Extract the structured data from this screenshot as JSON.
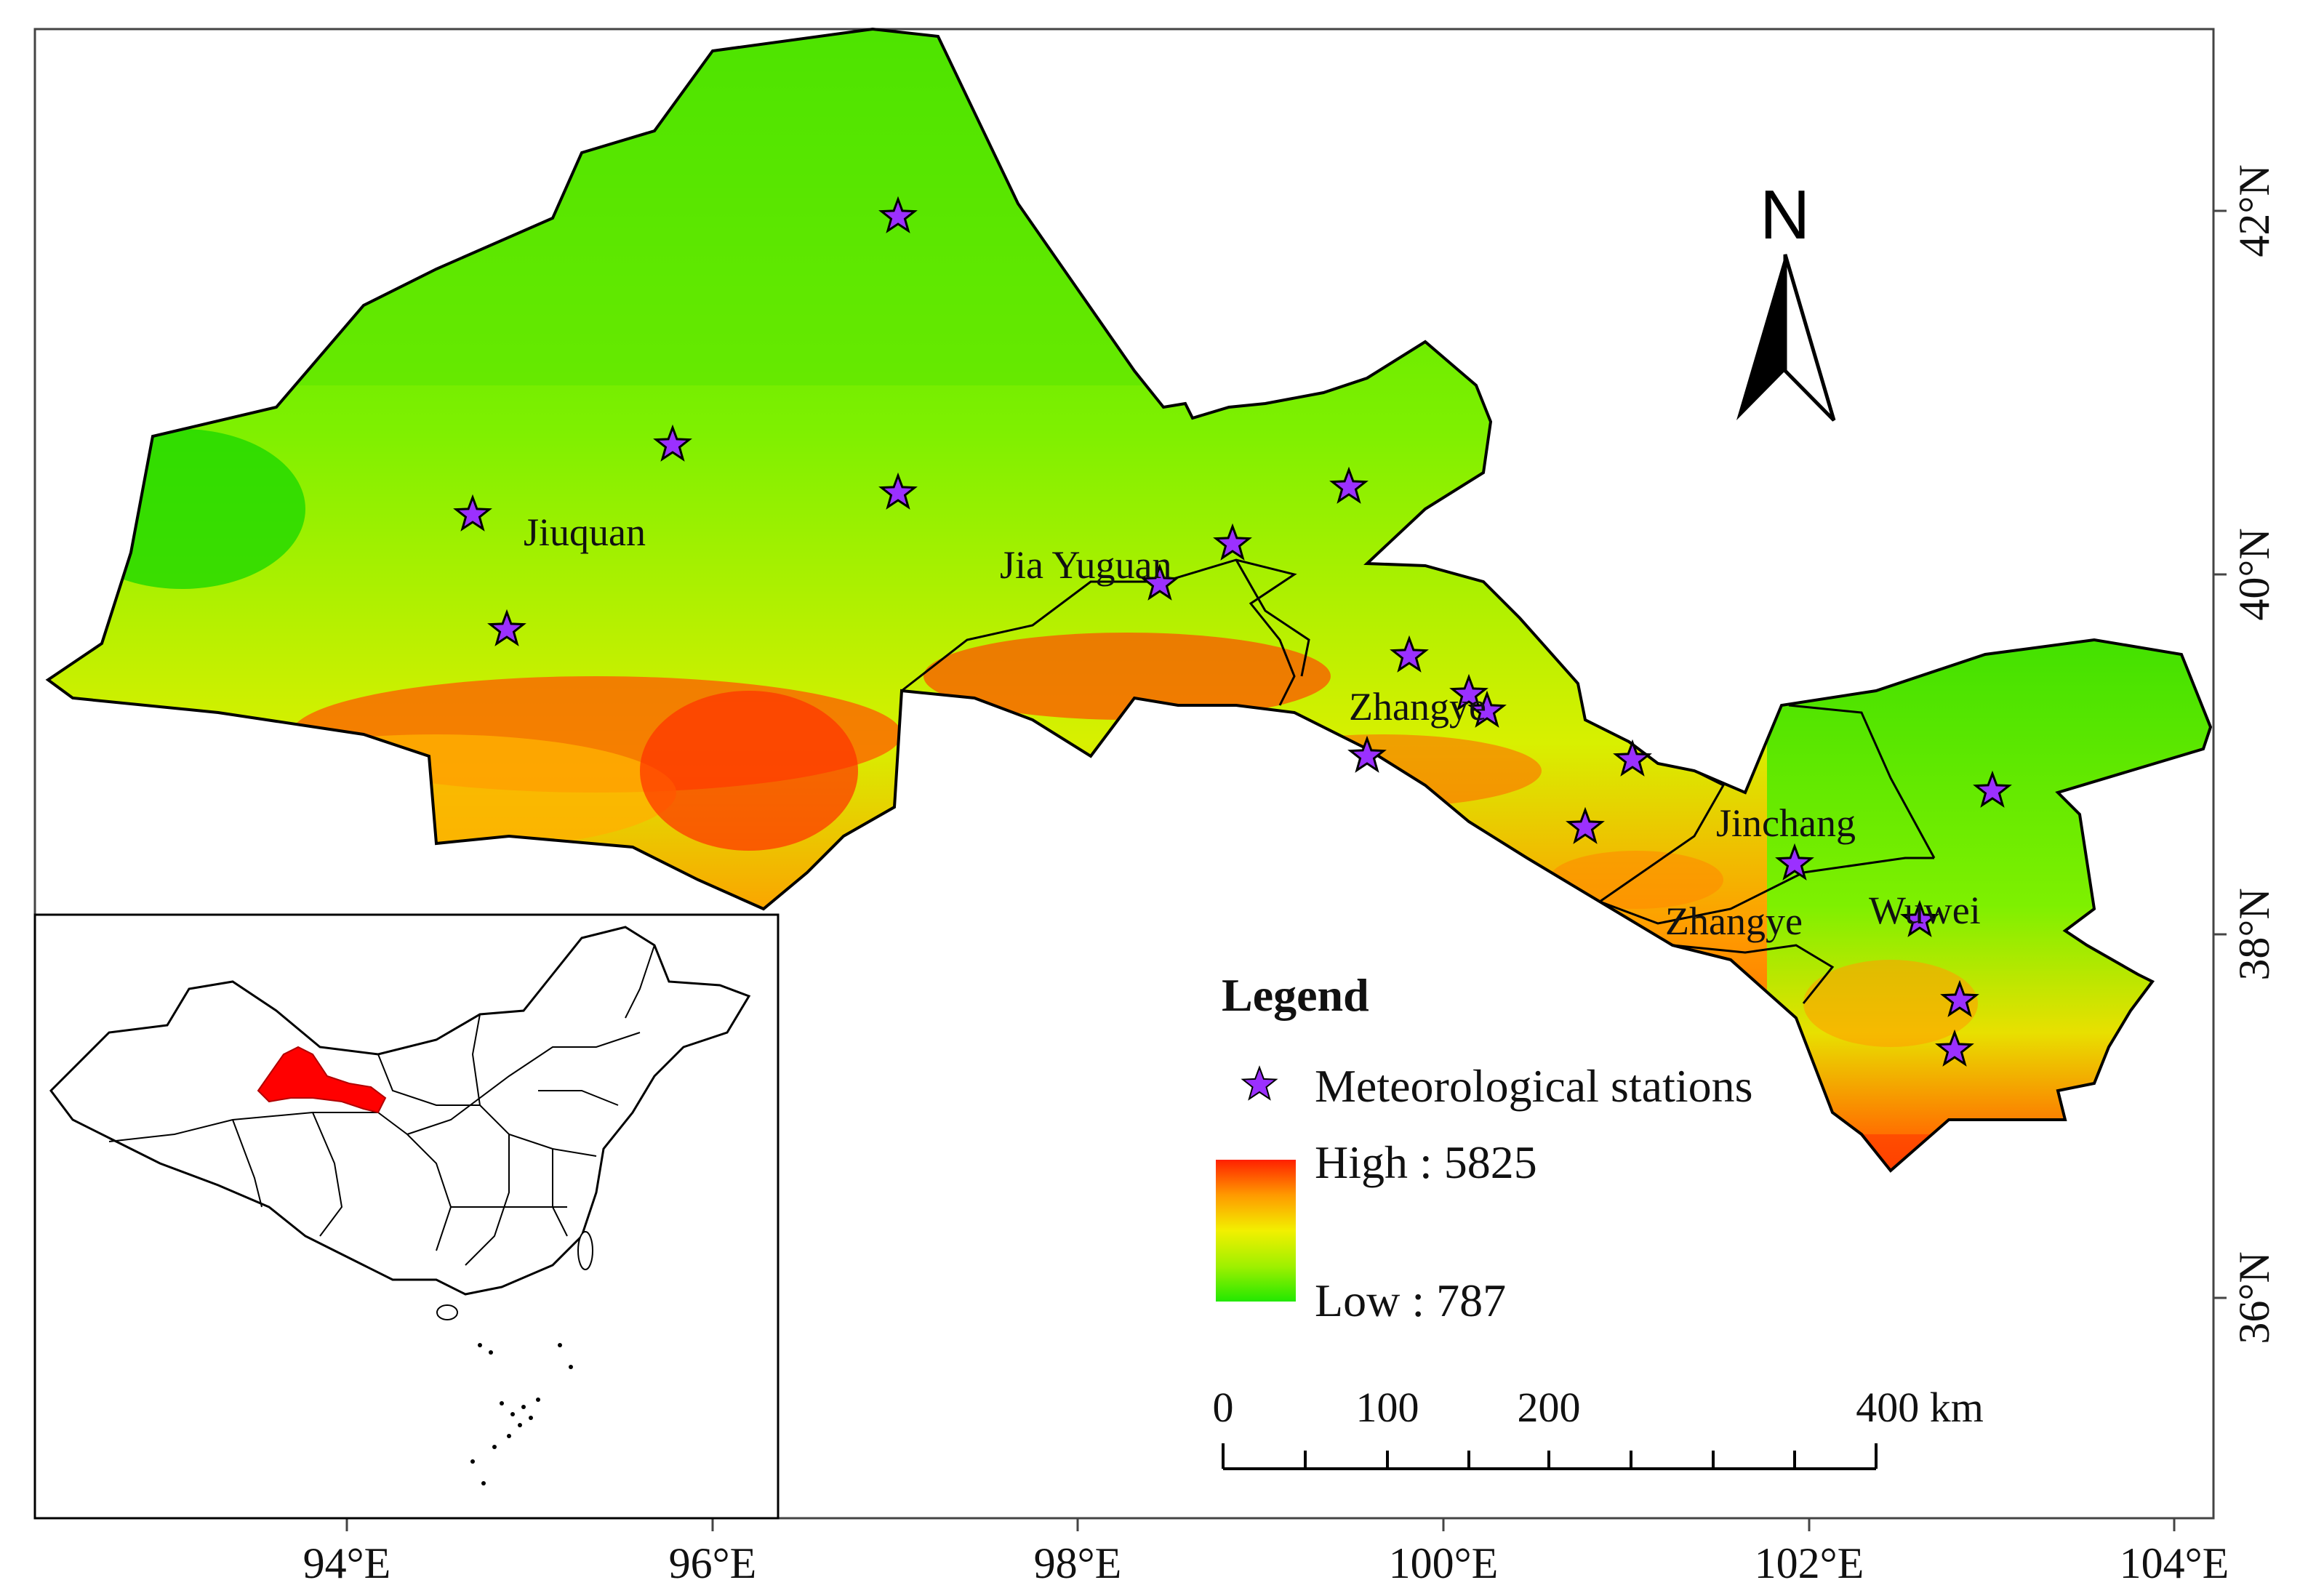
{
  "north_label": "N",
  "axes": {
    "lon_labels": [
      "94°E",
      "96°E",
      "98°E",
      "100°E",
      "102°E",
      "104°E"
    ],
    "lat_labels": [
      "42°N",
      "40°N",
      "38°N",
      "36°N"
    ]
  },
  "places": [
    "Jiuquan",
    "Jia Yuguan",
    "Zhangye",
    "Jinchang",
    "Zhangye",
    "Wuwei"
  ],
  "legend": {
    "title": "Legend",
    "station_label": "Meteorological stations",
    "high_label": "High : 5825",
    "low_label": "Low : 787",
    "ramp_colors": [
      "#ff2000",
      "#ff9a00",
      "#f2f000",
      "#a0f000",
      "#22e800"
    ],
    "station_color": "#9b30ff"
  },
  "scale_bar": {
    "labels": [
      "0",
      "100",
      "200",
      "400 km"
    ]
  },
  "colors": {
    "low_elevation": "#22e000",
    "mid_elevation": "#c8f000",
    "high_elevation": "#ff2a00",
    "inset_highlight": "#ff0000"
  }
}
